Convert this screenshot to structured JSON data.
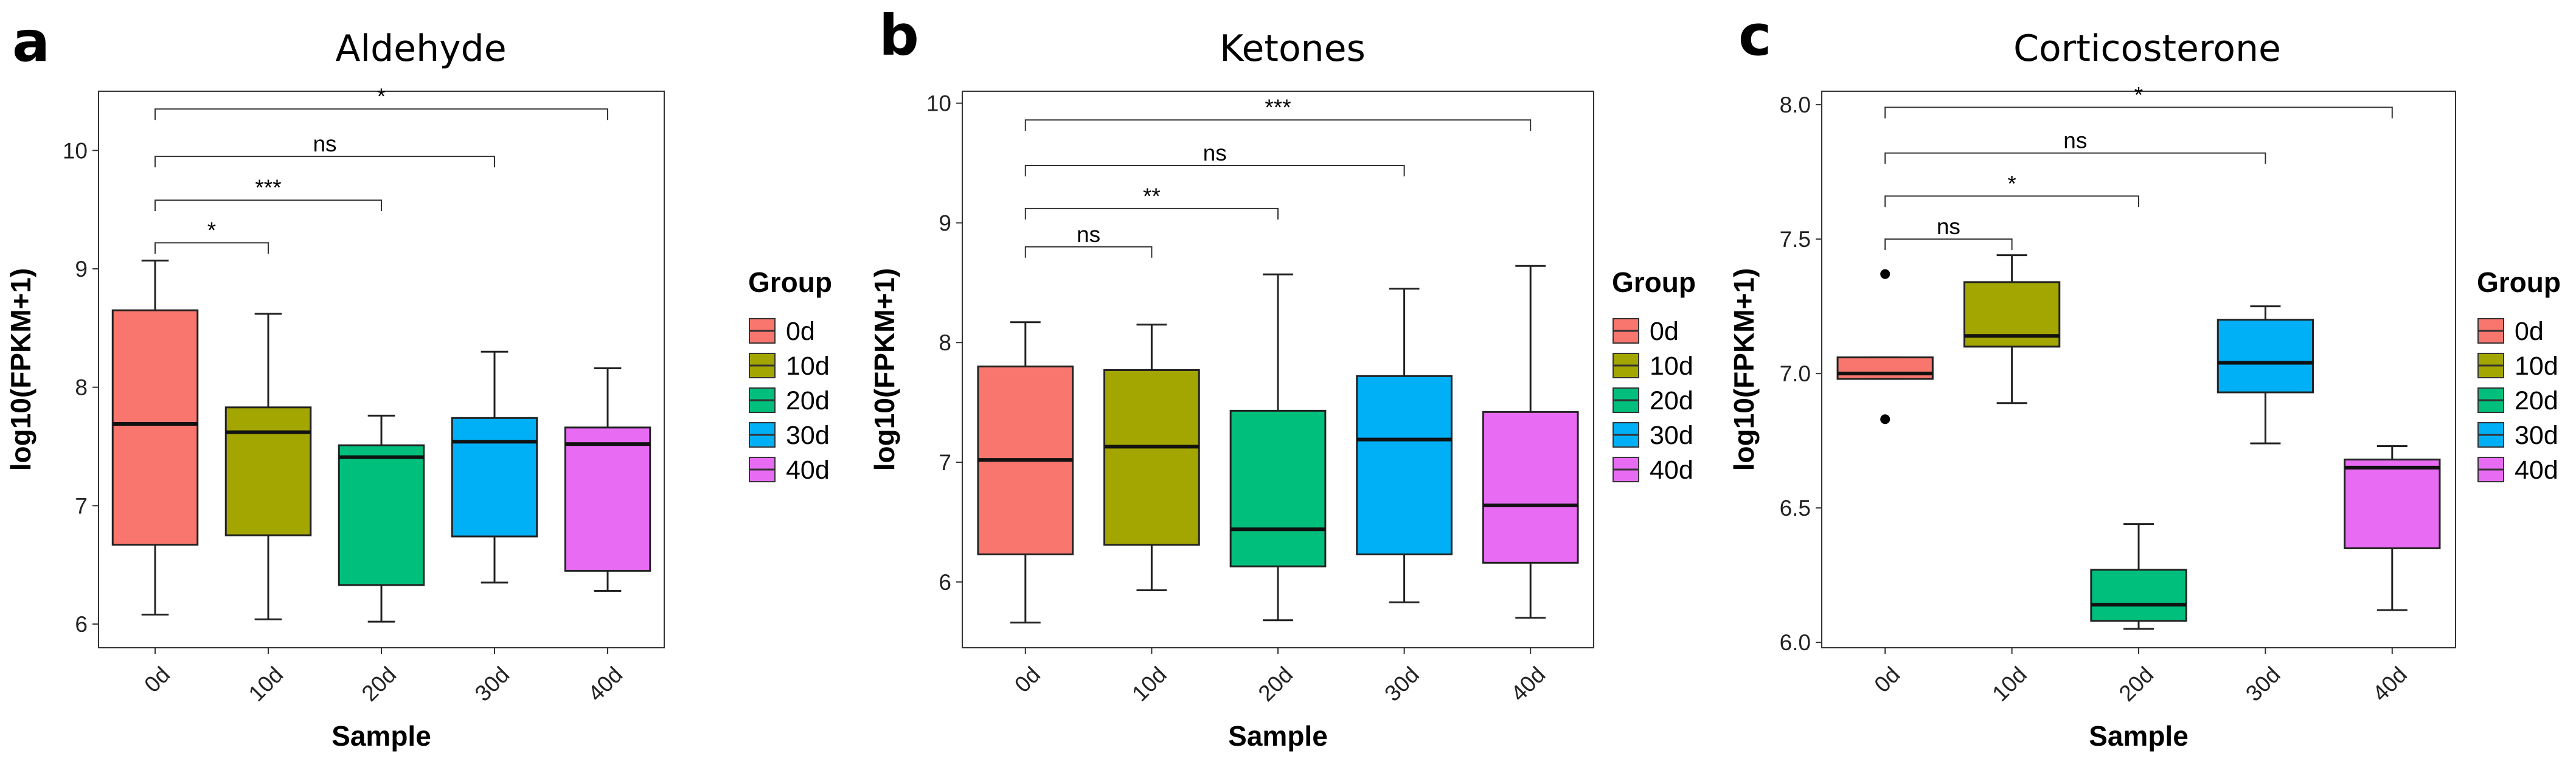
{
  "chart_data": [
    {
      "panel": "a",
      "type": "box",
      "title": "Aldehyde",
      "xlabel": "Sample",
      "ylabel": "log10(FPKM+1)",
      "ylim": [
        5.8,
        10.5
      ],
      "yticks": [
        6,
        7,
        8,
        9,
        10
      ],
      "ytick_labels": [
        "6",
        "7",
        "8",
        "9",
        "10"
      ],
      "categories": [
        "0d",
        "10d",
        "20d",
        "30d",
        "40d"
      ],
      "boxes": [
        {
          "name": "0d",
          "min": 6.08,
          "q1": 6.67,
          "median": 7.69,
          "q3": 8.65,
          "max": 9.07,
          "outliers": []
        },
        {
          "name": "10d",
          "min": 6.04,
          "q1": 6.75,
          "median": 7.62,
          "q3": 7.83,
          "max": 8.62,
          "outliers": []
        },
        {
          "name": "20d",
          "min": 6.02,
          "q1": 6.33,
          "median": 7.41,
          "q3": 7.51,
          "max": 7.76,
          "outliers": []
        },
        {
          "name": "30d",
          "min": 6.35,
          "q1": 6.74,
          "median": 7.54,
          "q3": 7.74,
          "max": 8.3,
          "outliers": []
        },
        {
          "name": "40d",
          "min": 6.28,
          "q1": 6.45,
          "median": 7.52,
          "q3": 7.66,
          "max": 8.16,
          "outliers": []
        }
      ],
      "comparisons": [
        {
          "from": "0d",
          "to": "10d",
          "label": "*",
          "level": 9.22
        },
        {
          "from": "0d",
          "to": "20d",
          "label": "***",
          "level": 9.58
        },
        {
          "from": "0d",
          "to": "30d",
          "label": "ns",
          "level": 9.95
        },
        {
          "from": "0d",
          "to": "40d",
          "label": "*",
          "level": 10.35
        }
      ]
    },
    {
      "panel": "b",
      "type": "box",
      "title": "Ketones",
      "xlabel": "Sample",
      "ylabel": "log10(FPKM+1)",
      "ylim": [
        5.45,
        10.1
      ],
      "yticks": [
        6,
        7,
        8,
        9,
        10
      ],
      "ytick_labels": [
        "6",
        "7",
        "8",
        "9",
        "10"
      ],
      "categories": [
        "0d",
        "10d",
        "20d",
        "30d",
        "40d"
      ],
      "boxes": [
        {
          "name": "0d",
          "min": 5.66,
          "q1": 6.23,
          "median": 7.02,
          "q3": 7.8,
          "max": 8.17,
          "outliers": []
        },
        {
          "name": "10d",
          "min": 5.93,
          "q1": 6.31,
          "median": 7.13,
          "q3": 7.77,
          "max": 8.15,
          "outliers": []
        },
        {
          "name": "20d",
          "min": 5.68,
          "q1": 6.13,
          "median": 6.44,
          "q3": 7.43,
          "max": 8.57,
          "outliers": []
        },
        {
          "name": "30d",
          "min": 5.83,
          "q1": 6.23,
          "median": 7.19,
          "q3": 7.72,
          "max": 8.45,
          "outliers": []
        },
        {
          "name": "40d",
          "min": 5.7,
          "q1": 6.16,
          "median": 6.64,
          "q3": 7.42,
          "max": 8.64,
          "outliers": []
        }
      ],
      "comparisons": [
        {
          "from": "0d",
          "to": "10d",
          "label": "ns",
          "level": 8.8
        },
        {
          "from": "0d",
          "to": "20d",
          "label": "**",
          "level": 9.12
        },
        {
          "from": "0d",
          "to": "30d",
          "label": "ns",
          "level": 9.48
        },
        {
          "from": "0d",
          "to": "40d",
          "label": "***",
          "level": 9.86
        }
      ]
    },
    {
      "panel": "c",
      "type": "box",
      "title": "Corticosterone",
      "xlabel": "Sample",
      "ylabel": "log10(FPKM+1)",
      "ylim": [
        5.98,
        8.05
      ],
      "yticks": [
        6.0,
        6.5,
        7.0,
        7.5,
        8.0
      ],
      "ytick_labels": [
        "6.0",
        "6.5",
        "7.0",
        "7.5",
        "8.0"
      ],
      "categories": [
        "0d",
        "10d",
        "20d",
        "30d",
        "40d"
      ],
      "boxes": [
        {
          "name": "0d",
          "min": 6.98,
          "q1": 6.98,
          "median": 7.0,
          "q3": 7.06,
          "max": 7.06,
          "outliers": [
            7.37,
            6.83
          ]
        },
        {
          "name": "10d",
          "min": 6.89,
          "q1": 7.1,
          "median": 7.14,
          "q3": 7.34,
          "max": 7.44,
          "outliers": []
        },
        {
          "name": "20d",
          "min": 6.05,
          "q1": 6.08,
          "median": 6.14,
          "q3": 6.27,
          "max": 6.44,
          "outliers": []
        },
        {
          "name": "30d",
          "min": 6.74,
          "q1": 6.93,
          "median": 7.04,
          "q3": 7.2,
          "max": 7.25,
          "outliers": []
        },
        {
          "name": "40d",
          "min": 6.12,
          "q1": 6.35,
          "median": 6.65,
          "q3": 6.68,
          "max": 6.73,
          "outliers": []
        }
      ],
      "comparisons": [
        {
          "from": "0d",
          "to": "10d",
          "label": "ns",
          "level": 7.5
        },
        {
          "from": "0d",
          "to": "20d",
          "label": "*",
          "level": 7.66
        },
        {
          "from": "0d",
          "to": "30d",
          "label": "ns",
          "level": 7.82
        },
        {
          "from": "0d",
          "to": "40d",
          "label": "*",
          "level": 7.99
        }
      ]
    }
  ],
  "legend": {
    "title": "Group",
    "items": [
      {
        "label": "0d",
        "color": "#F8766D"
      },
      {
        "label": "10d",
        "color": "#A3A500"
      },
      {
        "label": "20d",
        "color": "#00BF7D"
      },
      {
        "label": "30d",
        "color": "#00B0F6"
      },
      {
        "label": "40d",
        "color": "#E76BF3"
      }
    ]
  }
}
